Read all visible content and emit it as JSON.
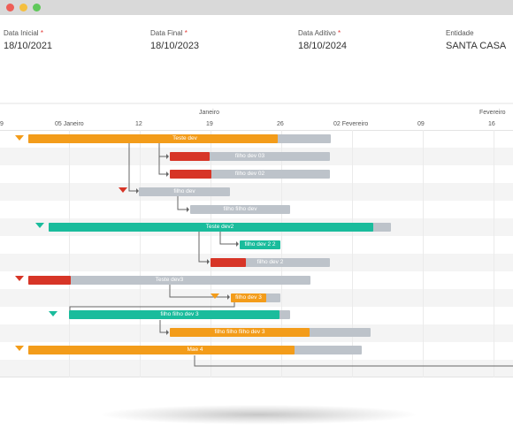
{
  "window": {
    "buttons": [
      {
        "name": "close",
        "color": "#ee5e57"
      },
      {
        "name": "minimize",
        "color": "#f5bf3f"
      },
      {
        "name": "maximize",
        "color": "#5fc85a"
      }
    ]
  },
  "fields": {
    "data_inicial": {
      "label": "Data Inicial",
      "value": "18/10/2021",
      "required": "*"
    },
    "data_final": {
      "label": "Data Final",
      "value": "18/10/2023",
      "required": "*"
    },
    "data_aditivo": {
      "label": "Data Aditivo",
      "value": "18/10/2024",
      "required": "*"
    },
    "entidade": {
      "label": "Entidade",
      "value": "SANTA CASA"
    }
  },
  "gantt": {
    "months": [
      "Janeiro",
      "Fevereiro"
    ],
    "days": [
      "9",
      "05 Janeiro",
      "12",
      "19",
      "26",
      "02 Fevereiro",
      "09",
      "16"
    ],
    "colors": {
      "orange": "#f39c1a",
      "red": "#d73527",
      "green": "#1abc9c",
      "gray": "#bdc3ca",
      "milestone_orange": "#f39c1a",
      "milestone_red": "#d73527",
      "milestone_green": "#1abc9c"
    },
    "tasks": [
      {
        "name": "Teste dev",
        "color": "orange",
        "progress": 0.76
      },
      {
        "name": "filho dev 03",
        "color": "red",
        "progress": 0.25
      },
      {
        "name": "filho dev 02",
        "color": "red",
        "progress": 0.26
      },
      {
        "name": "filho dev",
        "color": "gray",
        "progress": 0
      },
      {
        "name": "filho filho dev",
        "color": "gray",
        "progress": 0
      },
      {
        "name": "Teste dev2",
        "color": "green",
        "progress": 0.95
      },
      {
        "name": "filho dev 2 2",
        "color": "green",
        "progress": 1.0
      },
      {
        "name": "filho dev 2",
        "color": "red",
        "progress": 0.3
      },
      {
        "name": "Teste dev3",
        "color": "red",
        "progress": 0.15
      },
      {
        "name": "filho dev 3",
        "color": "orange",
        "progress": 0.7
      },
      {
        "name": "filho filho dev 3",
        "color": "green",
        "progress": 0.95
      },
      {
        "name": "filho filho filho dev 3",
        "color": "orange",
        "progress": 0.7
      },
      {
        "name": "Mae 4",
        "color": "orange",
        "progress": 0.8
      }
    ]
  }
}
